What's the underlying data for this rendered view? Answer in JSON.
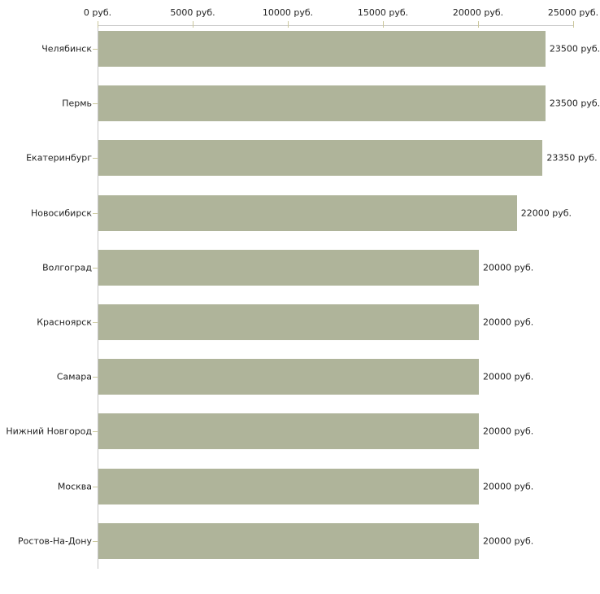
{
  "chart_data": {
    "type": "bar",
    "orientation": "horizontal",
    "title": "",
    "xlabel": "",
    "ylabel": "",
    "unit": "руб.",
    "categories": [
      "Челябинск",
      "Пермь",
      "Екатеринбург",
      "Новосибирск",
      "Волгоград",
      "Красноярск",
      "Самара",
      "Нижний Новгород",
      "Москва",
      "Ростов-На-Дону"
    ],
    "values": [
      23500,
      23500,
      23350,
      22000,
      20000,
      20000,
      20000,
      20000,
      20000,
      20000
    ],
    "value_labels": [
      "23500 руб.",
      "23500 руб.",
      "23350 руб.",
      "22000 руб.",
      "20000 руб.",
      "20000 руб.",
      "20000 руб.",
      "20000 руб.",
      "20000 руб.",
      "20000 руб."
    ],
    "xlim": [
      0,
      25000
    ],
    "x_ticks": [
      0,
      5000,
      10000,
      15000,
      20000,
      25000
    ],
    "x_tick_labels": [
      "0 руб.",
      "5000 руб.",
      "10000 руб.",
      "15000 руб.",
      "20000 руб.",
      "25000 руб."
    ],
    "x_axis_position": "top",
    "grid": false,
    "legend": false,
    "colors": {
      "bar": "#afb49a",
      "axis_line": "#c6c6c6",
      "tick": "#cbc79b",
      "text": "#222222",
      "background": "#ffffff"
    }
  }
}
